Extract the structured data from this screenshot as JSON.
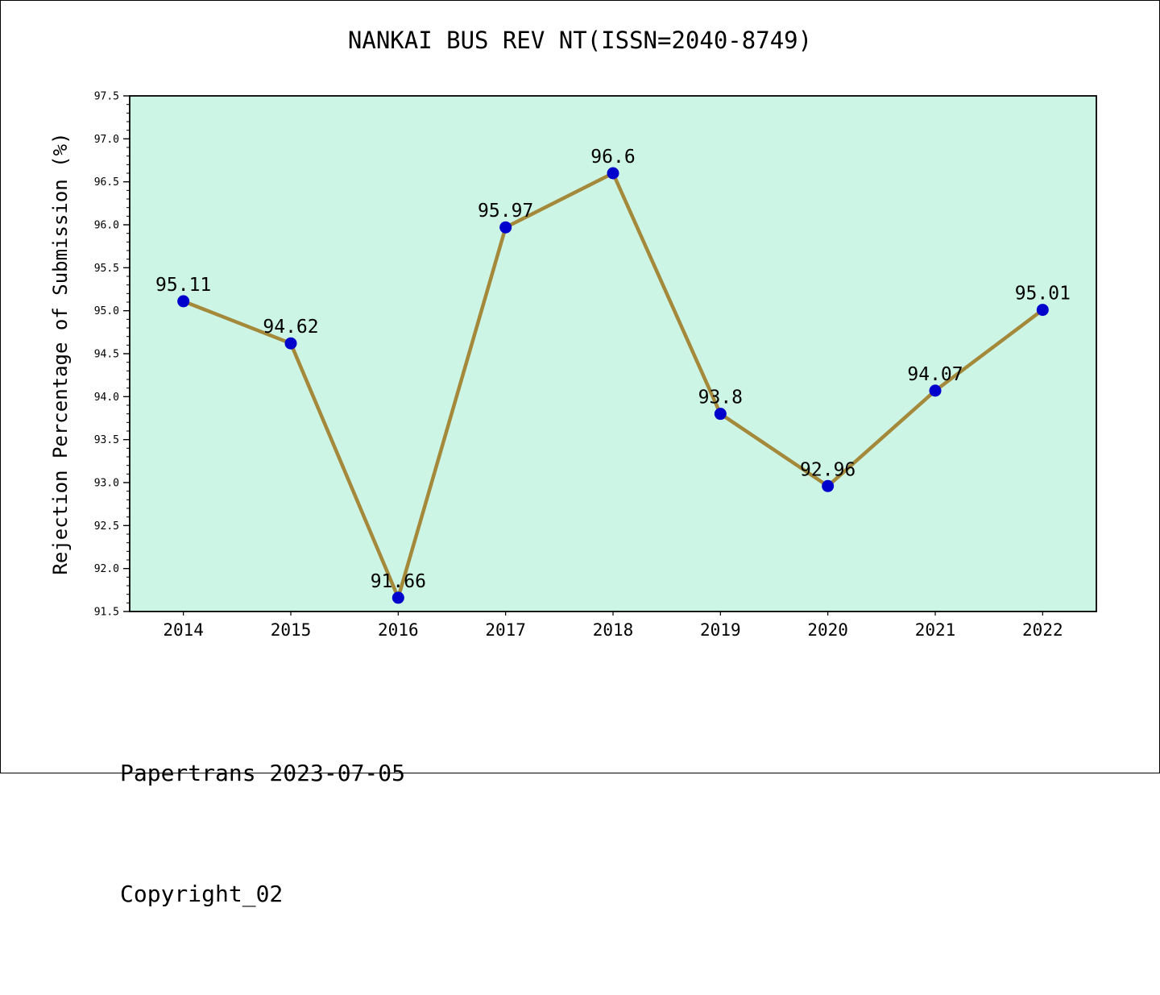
{
  "footer": {
    "line1": "Papertrans 2023-07-05",
    "line2": "Copyright_02"
  },
  "chart_data": {
    "type": "line",
    "title": "NANKAI BUS REV NT(ISSN=2040-8749)",
    "xlabel": "",
    "ylabel": "Rejection Percentage of Submission (%)",
    "categories": [
      "2014",
      "2015",
      "2016",
      "2017",
      "2018",
      "2019",
      "2020",
      "2021",
      "2022"
    ],
    "values": [
      95.11,
      94.62,
      91.66,
      95.97,
      96.6,
      93.8,
      92.96,
      94.07,
      95.01
    ],
    "point_labels": [
      "95.11",
      "94.62",
      "91.66",
      "95.97",
      "96.6",
      "93.8",
      "92.96",
      "94.07",
      "95.01"
    ],
    "ylim": [
      91.5,
      97.5
    ],
    "ytick_step": 0.5,
    "minor_tick_step": 0.1,
    "grid": false,
    "legend": "none",
    "colors": {
      "plot_bg": "#ccf5e6",
      "line": "#a5893a",
      "point": "#0000cd",
      "axis": "#000000",
      "text": "#000000"
    }
  }
}
